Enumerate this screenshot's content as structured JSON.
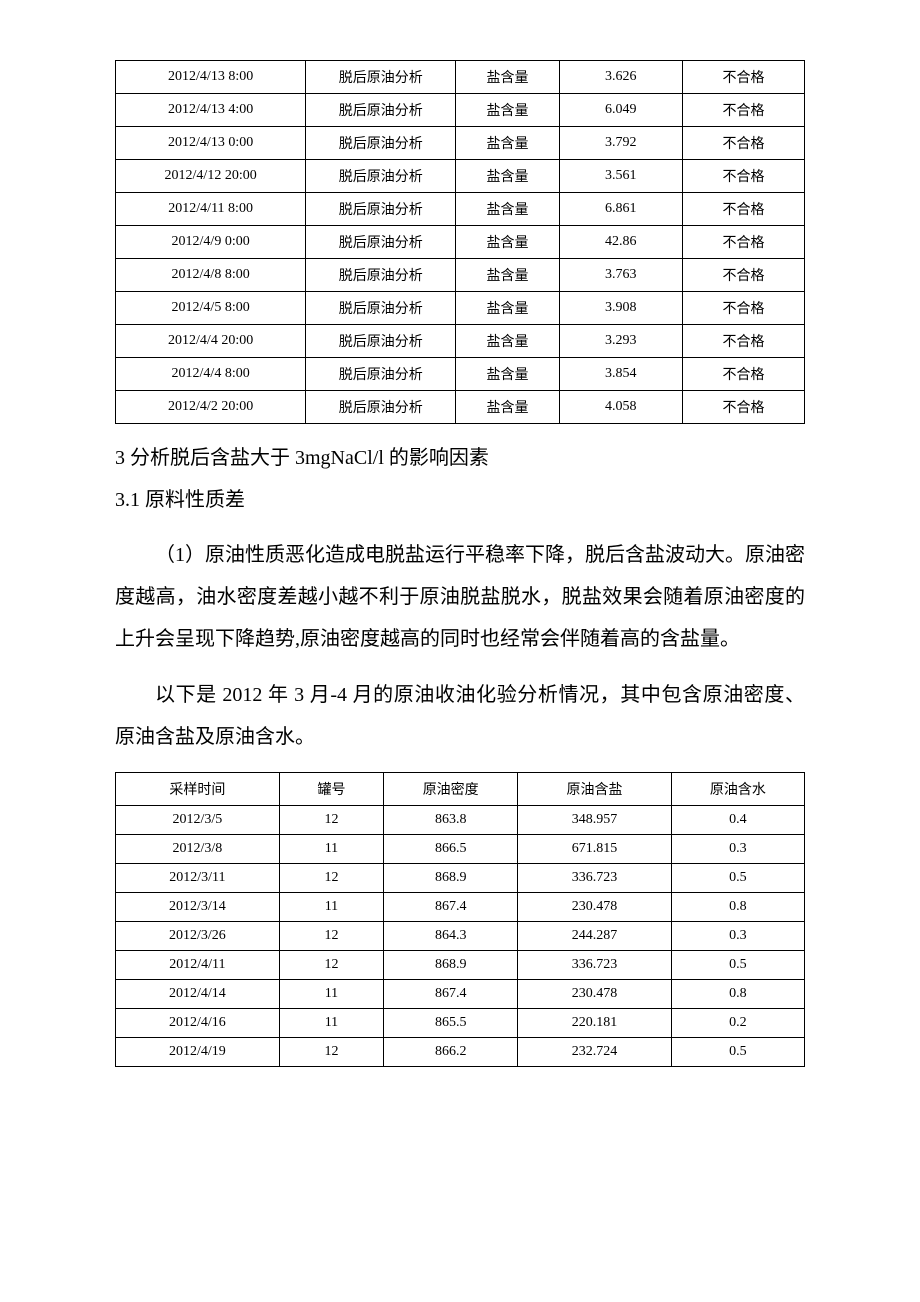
{
  "table1": {
    "rows": [
      {
        "time": "2012/4/13 8:00",
        "type": "脱后原油分析",
        "item": "盐含量",
        "value": "3.626",
        "result": "不合格"
      },
      {
        "time": "2012/4/13 4:00",
        "type": "脱后原油分析",
        "item": "盐含量",
        "value": "6.049",
        "result": "不合格"
      },
      {
        "time": "2012/4/13 0:00",
        "type": "脱后原油分析",
        "item": "盐含量",
        "value": "3.792",
        "result": "不合格"
      },
      {
        "time": "2012/4/12 20:00",
        "type": "脱后原油分析",
        "item": "盐含量",
        "value": "3.561",
        "result": "不合格"
      },
      {
        "time": "2012/4/11 8:00",
        "type": "脱后原油分析",
        "item": "盐含量",
        "value": "6.861",
        "result": "不合格"
      },
      {
        "time": "2012/4/9 0:00",
        "type": "脱后原油分析",
        "item": "盐含量",
        "value": "42.86",
        "result": "不合格"
      },
      {
        "time": "2012/4/8 8:00",
        "type": "脱后原油分析",
        "item": "盐含量",
        "value": "3.763",
        "result": "不合格"
      },
      {
        "time": "2012/4/5 8:00",
        "type": "脱后原油分析",
        "item": "盐含量",
        "value": "3.908",
        "result": "不合格"
      },
      {
        "time": "2012/4/4 20:00",
        "type": "脱后原油分析",
        "item": "盐含量",
        "value": "3.293",
        "result": "不合格"
      },
      {
        "time": "2012/4/4 8:00",
        "type": "脱后原油分析",
        "item": "盐含量",
        "value": "3.854",
        "result": "不合格"
      },
      {
        "time": "2012/4/2 20:00",
        "type": "脱后原油分析",
        "item": "盐含量",
        "value": "4.058",
        "result": "不合格"
      }
    ]
  },
  "heading3": "3 分析脱后含盐大于 3mgNaCl/l 的影响因素",
  "heading31": "3.1 原料性质差",
  "para1": "（1）原油性质恶化造成电脱盐运行平稳率下降，脱后含盐波动大。原油密度越高，油水密度差越小越不利于原油脱盐脱水，脱盐效果会随着原油密度的上升会呈现下降趋势,原油密度越高的同时也经常会伴随着高的含盐量。",
  "para2": "以下是 2012 年 3 月-4 月的原油收油化验分析情况，其中包含原油密度、原油含盐及原油含水。",
  "table2": {
    "headers": {
      "c1": "采样时间",
      "c2": "罐号",
      "c3": "原油密度",
      "c4": "原油含盐",
      "c5": "原油含水"
    },
    "rows": [
      {
        "c1": "2012/3/5",
        "c2": "12",
        "c3": "863.8",
        "c4": "348.957",
        "c5": "0.4"
      },
      {
        "c1": "2012/3/8",
        "c2": "11",
        "c3": "866.5",
        "c4": "671.815",
        "c5": "0.3"
      },
      {
        "c1": "2012/3/11",
        "c2": "12",
        "c3": "868.9",
        "c4": "336.723",
        "c5": "0.5"
      },
      {
        "c1": "2012/3/14",
        "c2": "11",
        "c3": "867.4",
        "c4": "230.478",
        "c5": "0.8"
      },
      {
        "c1": "2012/3/26",
        "c2": "12",
        "c3": "864.3",
        "c4": "244.287",
        "c5": "0.3"
      },
      {
        "c1": "2012/4/11",
        "c2": "12",
        "c3": "868.9",
        "c4": "336.723",
        "c5": "0.5"
      },
      {
        "c1": "2012/4/14",
        "c2": "11",
        "c3": "867.4",
        "c4": "230.478",
        "c5": "0.8"
      },
      {
        "c1": "2012/4/16",
        "c2": "11",
        "c3": "865.5",
        "c4": "220.181",
        "c5": "0.2"
      },
      {
        "c1": "2012/4/19",
        "c2": "12",
        "c3": "866.2",
        "c4": "232.724",
        "c5": "0.5"
      }
    ]
  }
}
